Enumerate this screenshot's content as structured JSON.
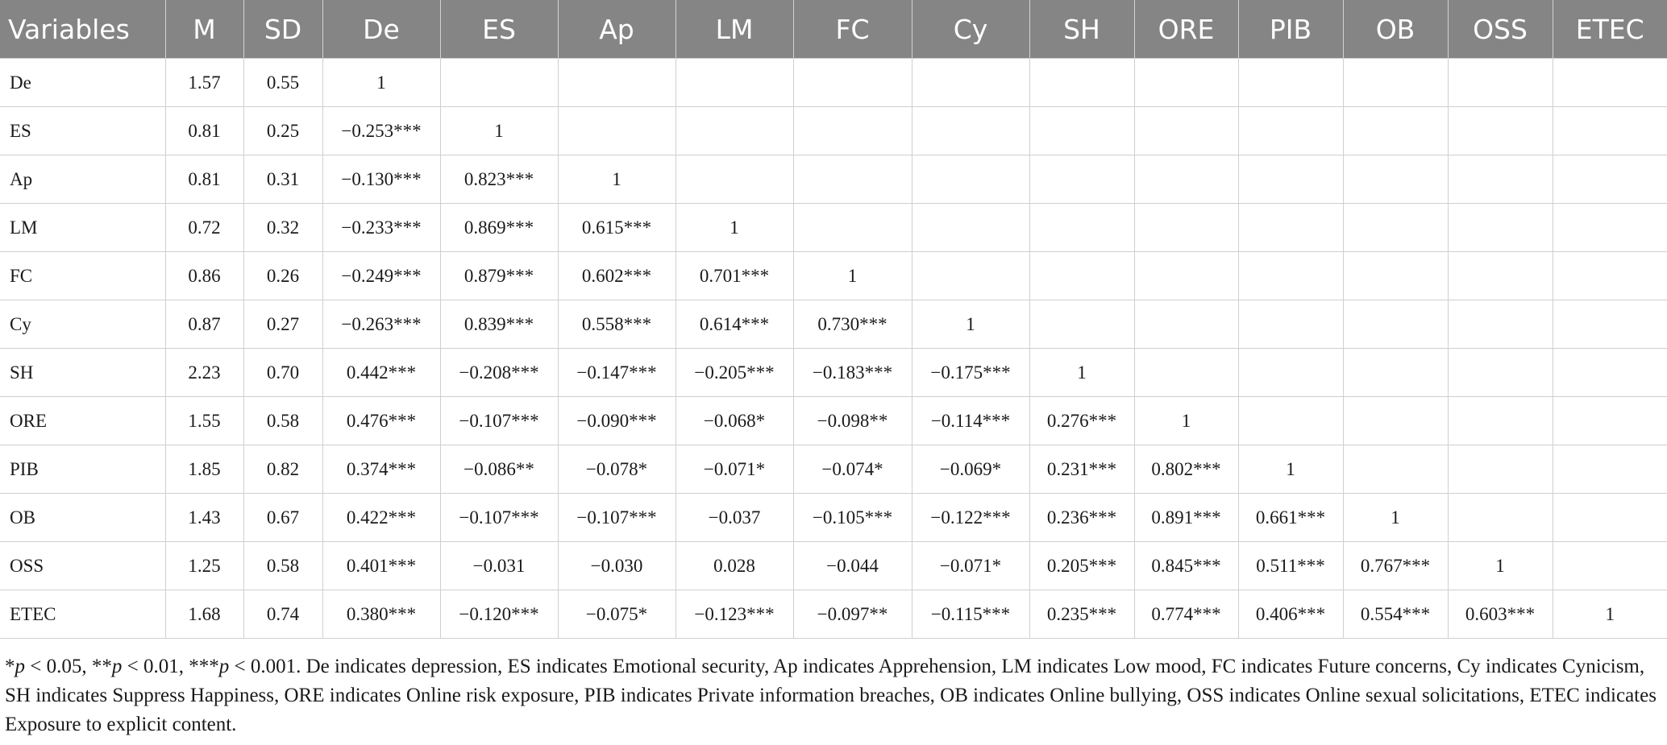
{
  "table": {
    "headers": [
      "Variables",
      "M",
      "SD",
      "De",
      "ES",
      "Ap",
      "LM",
      "FC",
      "Cy",
      "SH",
      "ORE",
      "PIB",
      "OB",
      "OSS",
      "ETEC"
    ],
    "rows": [
      [
        "De",
        "1.57",
        "0.55",
        "1",
        "",
        "",
        "",
        "",
        "",
        "",
        "",
        "",
        "",
        "",
        ""
      ],
      [
        "ES",
        "0.81",
        "0.25",
        "−0.253***",
        "1",
        "",
        "",
        "",
        "",
        "",
        "",
        "",
        "",
        "",
        ""
      ],
      [
        "Ap",
        "0.81",
        "0.31",
        "−0.130***",
        "0.823***",
        "1",
        "",
        "",
        "",
        "",
        "",
        "",
        "",
        "",
        ""
      ],
      [
        "LM",
        "0.72",
        "0.32",
        "−0.233***",
        "0.869***",
        "0.615***",
        "1",
        "",
        "",
        "",
        "",
        "",
        "",
        "",
        ""
      ],
      [
        "FC",
        "0.86",
        "0.26",
        "−0.249***",
        "0.879***",
        "0.602***",
        "0.701***",
        "1",
        "",
        "",
        "",
        "",
        "",
        "",
        ""
      ],
      [
        "Cy",
        "0.87",
        "0.27",
        "−0.263***",
        "0.839***",
        "0.558***",
        "0.614***",
        "0.730***",
        "1",
        "",
        "",
        "",
        "",
        "",
        ""
      ],
      [
        "SH",
        "2.23",
        "0.70",
        "0.442***",
        "−0.208***",
        "−0.147***",
        "−0.205***",
        "−0.183***",
        "−0.175***",
        "1",
        "",
        "",
        "",
        "",
        ""
      ],
      [
        "ORE",
        "1.55",
        "0.58",
        "0.476***",
        "−0.107***",
        "−0.090***",
        "−0.068*",
        "−0.098**",
        "−0.114***",
        "0.276***",
        "1",
        "",
        "",
        "",
        ""
      ],
      [
        "PIB",
        "1.85",
        "0.82",
        "0.374***",
        "−0.086**",
        "−0.078*",
        "−0.071*",
        "−0.074*",
        "−0.069*",
        "0.231***",
        "0.802***",
        "1",
        "",
        "",
        ""
      ],
      [
        "OB",
        "1.43",
        "0.67",
        "0.422***",
        "−0.107***",
        "−0.107***",
        "−0.037",
        "−0.105***",
        "−0.122***",
        "0.236***",
        "0.891***",
        "0.661***",
        "1",
        "",
        ""
      ],
      [
        "OSS",
        "1.25",
        "0.58",
        "0.401***",
        "−0.031",
        "−0.030",
        "0.028",
        "−0.044",
        "−0.071*",
        "0.205***",
        "0.845***",
        "0.511***",
        "0.767***",
        "1",
        ""
      ],
      [
        "ETEC",
        "1.68",
        "0.74",
        "0.380***",
        "−0.120***",
        "−0.075*",
        "−0.123***",
        "−0.097**",
        "−0.115***",
        "0.235***",
        "0.774***",
        "0.406***",
        "0.554***",
        "0.603***",
        "1"
      ]
    ]
  },
  "note": {
    "star1": "*",
    "p1": "p",
    "t1": " < 0.05, **",
    "p2": "p",
    "t2": " < 0.01, ***",
    "p3": "p",
    "rest": " < 0.001. De indicates depression, ES indicates Emotional security, Ap indicates Apprehension, LM indicates Low mood, FC indicates Future concerns, Cy indicates Cynicism, SH indicates Suppress Happiness, ORE indicates Online risk exposure, PIB indicates Private information breaches, OB indicates Online bullying, OSS indicates Online sexual solicitations, ETEC indicates Exposure to explicit content."
  },
  "colors": {
    "header_bg": "#858585",
    "header_text": "#ffffff",
    "grid": "#cfcfcf"
  }
}
